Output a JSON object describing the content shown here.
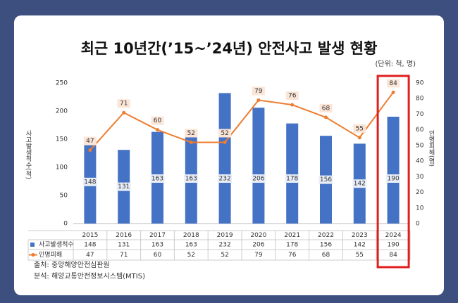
{
  "chart_data": {
    "type": "bar",
    "title": "최근 10년간(’15~’24년) 안전사고 발생 현황",
    "subtitle": "(단위: 척, 명)",
    "y_label": "사고발생척수(척)",
    "y2_label": "인명피해(명)",
    "categories": [
      "2015",
      "2016",
      "2017",
      "2018",
      "2019",
      "2020",
      "2021",
      "2022",
      "2023",
      "2024"
    ],
    "series": [
      {
        "name": "사고발생척수",
        "type": "bar",
        "color": "#4472c4",
        "values": [
          148,
          131,
          163,
          163,
          232,
          206,
          178,
          156,
          142,
          190
        ]
      },
      {
        "name": "인명피해",
        "type": "line",
        "axis": "y2",
        "color": "#ed7d31",
        "values": [
          47,
          71,
          60,
          52,
          52,
          79,
          76,
          68,
          55,
          84
        ]
      }
    ],
    "ylim": [
      0,
      250
    ],
    "yticks": [
      0,
      50,
      100,
      150,
      200,
      250
    ],
    "y2lim": [
      0,
      90
    ],
    "y2ticks": [
      0,
      10,
      20,
      30,
      40,
      50,
      60,
      70,
      80,
      90
    ],
    "highlight_color": "#e02020",
    "notes": [
      "출처: 중앙해양안전심판원",
      "분석: 해양교통안전정보시스템(MTIS)"
    ]
  }
}
